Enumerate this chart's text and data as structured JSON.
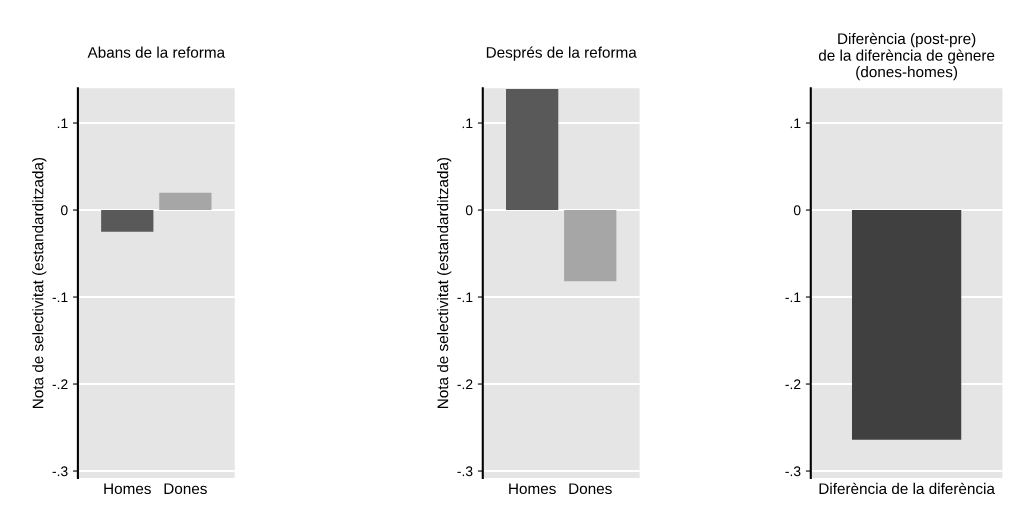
{
  "chart_data": [
    {
      "type": "bar",
      "title": "Abans de la reforma",
      "ylabel": "Nota de selectivitat (estandarditzada)",
      "categories": [
        "Homes",
        "Dones"
      ],
      "values": [
        -0.025,
        0.02
      ],
      "colors": [
        "#595959",
        "#a6a6a6"
      ],
      "ylim": [
        -0.308,
        0.14
      ],
      "yticks": [
        {
          "value": 0.1,
          "label": ".1"
        },
        0,
        {
          "value": -0.1,
          "label": "-.1"
        },
        {
          "value": -0.2,
          "label": "-.2"
        },
        {
          "value": -0.3,
          "label": "-.3"
        }
      ],
      "grid": "y"
    },
    {
      "type": "bar",
      "title": "Després de la reforma",
      "ylabel": "Nota de selectivitat (estandarditzada)",
      "categories": [
        "Homes",
        "Dones"
      ],
      "values": [
        0.139,
        -0.082
      ],
      "colors": [
        "#595959",
        "#a6a6a6"
      ],
      "ylim": [
        -0.308,
        0.14
      ],
      "yticks": [
        {
          "value": 0.1,
          "label": ".1"
        },
        0,
        {
          "value": -0.1,
          "label": "-.1"
        },
        {
          "value": -0.2,
          "label": "-.2"
        },
        {
          "value": -0.3,
          "label": "-.3"
        }
      ],
      "grid": "y"
    },
    {
      "type": "bar",
      "title": "Diferència (post-pre)\nde la diferència de gènere\n(dones-homes)",
      "categories": [
        "Diferència de la diferència"
      ],
      "values": [
        -0.264
      ],
      "colors": [
        "#404040"
      ],
      "ylim": [
        -0.308,
        0.14
      ],
      "yticks": [
        {
          "value": 0.1,
          "label": ".1"
        },
        0,
        {
          "value": -0.1,
          "label": "-.1"
        },
        {
          "value": -0.2,
          "label": "-.2"
        },
        {
          "value": -0.3,
          "label": "-.3"
        }
      ],
      "grid": "y"
    }
  ]
}
